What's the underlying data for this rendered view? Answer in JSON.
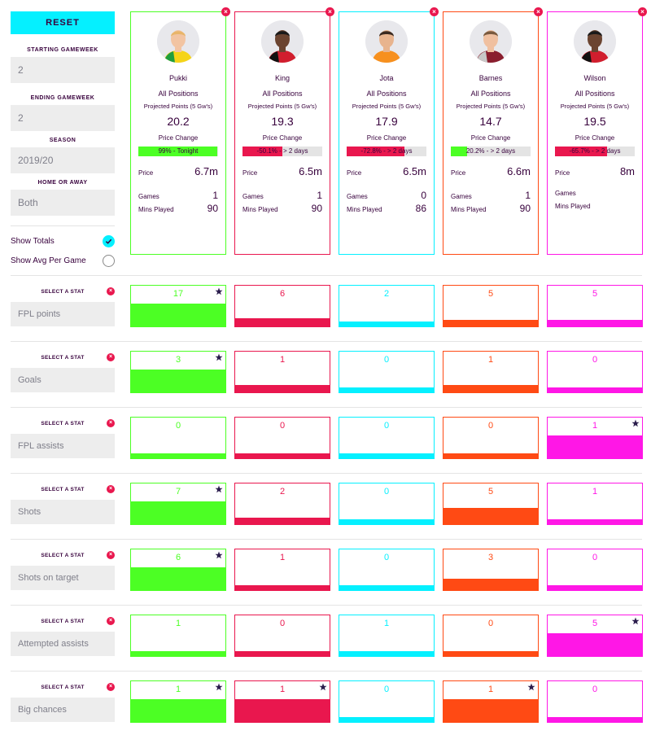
{
  "sidebar": {
    "reset_label": "RESET",
    "starting_gameweek": {
      "label": "STARTING GAMEWEEK",
      "value": "2"
    },
    "ending_gameweek": {
      "label": "ENDING GAMEWEEK",
      "value": "2"
    },
    "season": {
      "label": "SEASON",
      "value": "2019/20"
    },
    "home_away": {
      "label": "HOME OR AWAY",
      "value": "Both"
    },
    "show_totals": {
      "label": "Show Totals",
      "checked": true
    },
    "show_avg": {
      "label": "Show Avg Per Game",
      "checked": false
    }
  },
  "card_labels": {
    "projected": "Projected Points (5 Gw's)",
    "price_change": "Price Change",
    "price": "Price",
    "games": "Games",
    "mins": "Mins Played"
  },
  "players": [
    {
      "name": "Pukki",
      "position": "All Positions",
      "projected": "20.2",
      "price_change_text": "99% - Tonight",
      "price_change_pct": 99,
      "price": "6.7m",
      "games": "1",
      "mins": "90",
      "color": "#4cff24",
      "bar_color": "#4cff24",
      "hair": "#e8b56a",
      "shirt": "#f5d418",
      "shirt2": "#1f9e3f",
      "skin": "#f2c4a2"
    },
    {
      "name": "King",
      "position": "All Positions",
      "projected": "19.3",
      "price_change_text": "-50.1% - > 2 days",
      "price_change_pct": 50.1,
      "price": "6.5m",
      "games": "1",
      "mins": "90",
      "color": "#e9174e",
      "bar_color": "#e9174e",
      "hair": "#1a1a1a",
      "shirt": "#d11e2e",
      "shirt2": "#111111",
      "skin": "#6b4430"
    },
    {
      "name": "Jota",
      "position": "All Positions",
      "projected": "17.9",
      "price_change_text": "-72.8% - > 2 days",
      "price_change_pct": 72.8,
      "price": "6.5m",
      "games": "0",
      "mins": "86",
      "color": "#05f0ff",
      "bar_color": "#e9174e",
      "hair": "#3a2a20",
      "shirt": "#f7901e",
      "shirt2": "#f7901e",
      "skin": "#e8b48e"
    },
    {
      "name": "Barnes",
      "position": "All Positions",
      "projected": "14.7",
      "price_change_text": "20.2% - > 2 days",
      "price_change_pct": 20.2,
      "price": "6.6m",
      "games": "1",
      "mins": "90",
      "color": "#ff4a14",
      "bar_color": "#4cff24",
      "hair": "#7a5a3e",
      "shirt": "#8a1e2e",
      "shirt2": "#c8c8c8",
      "skin": "#f0c0a0"
    },
    {
      "name": "Wilson",
      "position": "All Positions",
      "projected": "19.5",
      "price_change_text": "-65.7% - > 2 days",
      "price_change_pct": 65.7,
      "price": "8m",
      "games": "",
      "mins": "",
      "color": "#ff17e6",
      "bar_color": "#e9174e",
      "hair": "#1a1a1a",
      "shirt": "#d11e2e",
      "shirt2": "#111111",
      "skin": "#6b4430"
    }
  ],
  "stat_label": "SELECT A STAT",
  "stats": [
    {
      "name": "FPL points",
      "values": [
        17,
        6,
        2,
        5,
        5
      ],
      "best": [
        0
      ]
    },
    {
      "name": "Goals",
      "values": [
        3,
        1,
        0,
        1,
        0
      ],
      "best": [
        0
      ]
    },
    {
      "name": "FPL assists",
      "values": [
        0,
        0,
        0,
        0,
        1
      ],
      "best": [
        4
      ]
    },
    {
      "name": "Shots",
      "values": [
        7,
        2,
        0,
        5,
        1
      ],
      "best": [
        0
      ]
    },
    {
      "name": "Shots on target",
      "values": [
        6,
        1,
        0,
        3,
        0
      ],
      "best": [
        0
      ]
    },
    {
      "name": "Attempted assists",
      "values": [
        1,
        0,
        1,
        0,
        5
      ],
      "best": [
        4
      ]
    },
    {
      "name": "Big chances",
      "values": [
        1,
        1,
        0,
        1,
        0
      ],
      "best": [
        0,
        1,
        3
      ]
    }
  ],
  "icons": {
    "close": "close-icon",
    "star": "star-icon",
    "check": "check-icon"
  }
}
